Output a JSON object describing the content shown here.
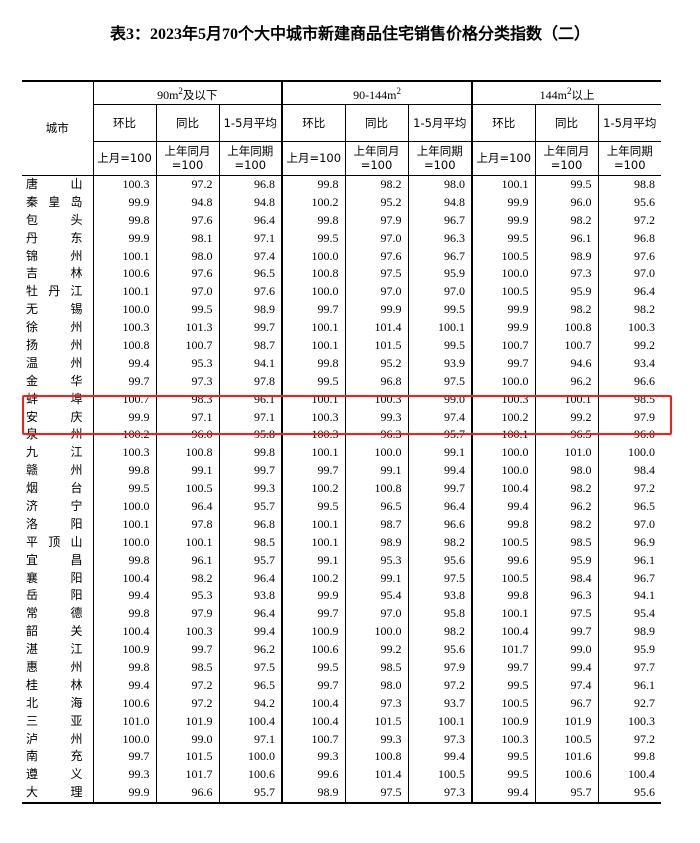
{
  "title": "表3：2023年5月70个大中城市新建商品住宅销售价格分类指数（二）",
  "header": {
    "city": "城市",
    "groups": [
      {
        "label": "90m",
        "sup": "2",
        "suffix": "及以下"
      },
      {
        "label": "90-144m",
        "sup": "2",
        "suffix": ""
      },
      {
        "label": "144m",
        "sup": "2",
        "suffix": "以上"
      }
    ],
    "sub": [
      "环比",
      "同比",
      "1-5月平均"
    ],
    "base": [
      "上月=100",
      "上年同月=100",
      "上年同期=100"
    ]
  },
  "highlight": {
    "color": "#ff1a1a",
    "cities": [
      "蚌埠",
      "安庆"
    ]
  },
  "rows": [
    [
      "唐山",
      "100.3",
      "97.2",
      "96.8",
      "99.8",
      "98.2",
      "98.0",
      "100.1",
      "99.5",
      "98.8"
    ],
    [
      "秦皇岛",
      "99.9",
      "94.8",
      "94.8",
      "100.2",
      "95.2",
      "94.8",
      "99.9",
      "96.0",
      "95.6"
    ],
    [
      "包头",
      "99.8",
      "97.6",
      "96.4",
      "99.8",
      "97.9",
      "96.7",
      "99.9",
      "98.2",
      "97.2"
    ],
    [
      "丹东",
      "99.9",
      "98.1",
      "97.1",
      "99.5",
      "97.0",
      "96.3",
      "99.5",
      "96.1",
      "96.8"
    ],
    [
      "锦州",
      "100.1",
      "98.0",
      "97.4",
      "100.0",
      "97.6",
      "96.7",
      "100.5",
      "98.9",
      "97.6"
    ],
    [
      "吉林",
      "100.6",
      "97.6",
      "96.5",
      "100.8",
      "97.5",
      "95.9",
      "100.0",
      "97.3",
      "97.0"
    ],
    [
      "牡丹江",
      "100.1",
      "97.0",
      "97.6",
      "100.0",
      "97.0",
      "97.0",
      "100.5",
      "95.9",
      "96.4"
    ],
    [
      "无锡",
      "100.0",
      "99.5",
      "98.9",
      "99.7",
      "99.9",
      "99.5",
      "99.9",
      "98.2",
      "98.2"
    ],
    [
      "徐州",
      "100.3",
      "101.3",
      "99.7",
      "100.1",
      "101.4",
      "100.1",
      "99.9",
      "100.8",
      "100.3"
    ],
    [
      "扬州",
      "100.8",
      "100.7",
      "98.7",
      "100.1",
      "101.5",
      "99.5",
      "100.7",
      "100.7",
      "99.2"
    ],
    [
      "温州",
      "99.4",
      "95.3",
      "94.1",
      "99.8",
      "95.2",
      "93.9",
      "99.7",
      "94.6",
      "93.4"
    ],
    [
      "金华",
      "99.7",
      "97.3",
      "97.8",
      "99.5",
      "96.8",
      "97.5",
      "100.0",
      "96.2",
      "96.6"
    ],
    [
      "蚌埠",
      "100.7",
      "98.3",
      "96.1",
      "100.1",
      "100.3",
      "99.0",
      "100.3",
      "100.1",
      "98.5"
    ],
    [
      "安庆",
      "99.9",
      "97.1",
      "97.1",
      "100.3",
      "99.3",
      "97.4",
      "100.2",
      "99.2",
      "97.9"
    ],
    [
      "泉州",
      "100.2",
      "96.0",
      "95.8",
      "100.3",
      "96.3",
      "95.7",
      "100.1",
      "96.5",
      "96.0"
    ],
    [
      "九江",
      "100.3",
      "100.8",
      "99.8",
      "100.1",
      "100.0",
      "99.1",
      "100.0",
      "101.0",
      "100.0"
    ],
    [
      "赣州",
      "99.8",
      "99.1",
      "99.7",
      "99.7",
      "99.1",
      "99.4",
      "100.0",
      "98.0",
      "98.4"
    ],
    [
      "烟台",
      "99.5",
      "100.5",
      "99.3",
      "100.2",
      "100.8",
      "99.7",
      "100.4",
      "98.2",
      "97.2"
    ],
    [
      "济宁",
      "100.0",
      "96.4",
      "95.7",
      "99.5",
      "96.5",
      "96.4",
      "99.4",
      "96.2",
      "96.5"
    ],
    [
      "洛阳",
      "100.1",
      "97.8",
      "96.8",
      "100.1",
      "98.7",
      "96.6",
      "99.8",
      "98.2",
      "97.0"
    ],
    [
      "平顶山",
      "100.0",
      "100.1",
      "98.5",
      "100.1",
      "98.9",
      "98.2",
      "100.5",
      "98.5",
      "96.9"
    ],
    [
      "宜昌",
      "99.8",
      "96.1",
      "95.7",
      "99.1",
      "95.3",
      "95.6",
      "99.6",
      "95.9",
      "96.1"
    ],
    [
      "襄阳",
      "100.4",
      "98.2",
      "96.4",
      "100.2",
      "99.1",
      "97.5",
      "100.5",
      "98.4",
      "96.7"
    ],
    [
      "岳阳",
      "99.4",
      "95.3",
      "93.8",
      "99.9",
      "95.4",
      "93.8",
      "99.8",
      "96.3",
      "94.1"
    ],
    [
      "常德",
      "99.8",
      "97.9",
      "96.4",
      "99.7",
      "97.0",
      "95.8",
      "100.1",
      "97.5",
      "95.4"
    ],
    [
      "韶关",
      "100.4",
      "100.3",
      "99.4",
      "100.9",
      "100.0",
      "98.2",
      "100.4",
      "99.7",
      "98.9"
    ],
    [
      "湛江",
      "100.9",
      "99.7",
      "96.2",
      "100.6",
      "99.2",
      "95.6",
      "101.7",
      "99.0",
      "95.9"
    ],
    [
      "惠州",
      "99.8",
      "98.5",
      "97.5",
      "99.5",
      "98.5",
      "97.9",
      "99.7",
      "99.4",
      "97.7"
    ],
    [
      "桂林",
      "99.4",
      "97.2",
      "96.5",
      "99.7",
      "98.0",
      "97.2",
      "99.5",
      "97.4",
      "96.1"
    ],
    [
      "北海",
      "100.6",
      "97.2",
      "94.2",
      "100.4",
      "97.3",
      "93.7",
      "100.5",
      "96.7",
      "92.7"
    ],
    [
      "三亚",
      "101.0",
      "101.9",
      "100.4",
      "100.4",
      "101.5",
      "100.1",
      "100.9",
      "101.9",
      "100.3"
    ],
    [
      "泸州",
      "100.0",
      "99.0",
      "97.1",
      "100.7",
      "99.3",
      "97.3",
      "100.3",
      "100.5",
      "97.2"
    ],
    [
      "南充",
      "99.7",
      "101.5",
      "100.0",
      "99.3",
      "100.8",
      "99.4",
      "99.5",
      "101.6",
      "99.8"
    ],
    [
      "遵义",
      "99.3",
      "101.7",
      "100.6",
      "99.6",
      "101.4",
      "100.5",
      "99.5",
      "100.6",
      "100.4"
    ],
    [
      "大理",
      "99.9",
      "96.6",
      "95.7",
      "98.9",
      "97.5",
      "97.3",
      "99.4",
      "95.7",
      "95.6"
    ]
  ]
}
